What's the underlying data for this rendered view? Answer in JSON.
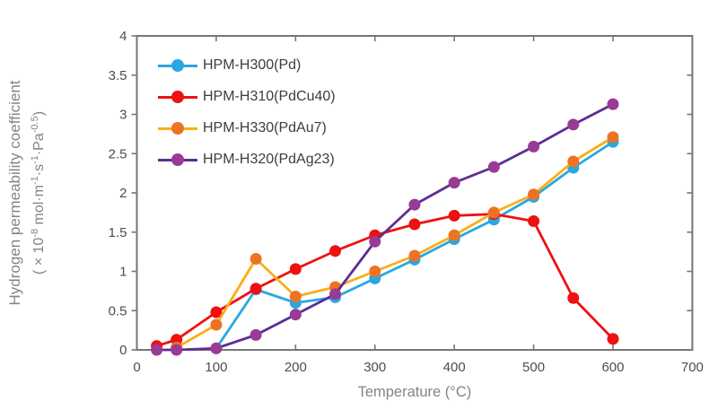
{
  "chart_data": {
    "type": "line",
    "title": "",
    "xlabel": "Temperature (°C)",
    "ylabel_line1": "Hydrogen permeability coefficient",
    "ylabel_line2_parts": [
      {
        "t": "( × 10"
      },
      {
        "t": "-8",
        "sup": true
      },
      {
        "t": " mol·m"
      },
      {
        "t": "-1",
        "sup": true
      },
      {
        "t": "·s"
      },
      {
        "t": "-1",
        "sup": true
      },
      {
        "t": "·Pa"
      },
      {
        "t": "-0.5",
        "sup": true
      },
      {
        "t": ")"
      }
    ],
    "xlim": [
      0,
      700
    ],
    "ylim": [
      0,
      4
    ],
    "x_ticks": [
      0,
      100,
      200,
      300,
      400,
      500,
      600,
      700
    ],
    "x_tick_labels": [
      "0",
      "100",
      "200",
      "300",
      "400",
      "500",
      "600",
      "700"
    ],
    "y_ticks": [
      0,
      0.5,
      1,
      1.5,
      2,
      2.5,
      3,
      3.5,
      4
    ],
    "y_tick_labels": [
      "0",
      "0.5",
      "1",
      "1.5",
      "2",
      "2.5",
      "3",
      "3.5",
      "4"
    ],
    "grid": false,
    "legend_position": "top-left-inside",
    "series": [
      {
        "name": "HPM-H300(Pd)",
        "line_color": "#29A8DF",
        "marker_color": "#29A8DF",
        "points": [
          [
            100,
            0.02
          ],
          [
            150,
            0.77
          ],
          [
            200,
            0.6
          ],
          [
            250,
            0.67
          ],
          [
            300,
            0.91
          ],
          [
            350,
            1.15
          ],
          [
            400,
            1.41
          ],
          [
            450,
            1.66
          ],
          [
            500,
            1.95
          ],
          [
            550,
            2.32
          ],
          [
            600,
            2.65
          ]
        ]
      },
      {
        "name": "HPM-H310(PdCu40)",
        "line_color": "#EE1111",
        "marker_color": "#EE1111",
        "points": [
          [
            25,
            0.05
          ],
          [
            50,
            0.13
          ],
          [
            100,
            0.48
          ],
          [
            150,
            0.78
          ],
          [
            200,
            1.03
          ],
          [
            250,
            1.26
          ],
          [
            300,
            1.46
          ],
          [
            350,
            1.6
          ],
          [
            400,
            1.71
          ],
          [
            450,
            1.73
          ],
          [
            500,
            1.64
          ],
          [
            550,
            0.66
          ],
          [
            600,
            0.14
          ]
        ]
      },
      {
        "name": "HPM-H330(PdAu7)",
        "line_color": "#FBAE17",
        "marker_color": "#ED7224",
        "points": [
          [
            50,
            0.03
          ],
          [
            100,
            0.32
          ],
          [
            150,
            1.16
          ],
          [
            200,
            0.68
          ],
          [
            250,
            0.8
          ],
          [
            300,
            1.0
          ],
          [
            350,
            1.2
          ],
          [
            400,
            1.46
          ],
          [
            450,
            1.75
          ],
          [
            500,
            1.98
          ],
          [
            550,
            2.4
          ],
          [
            600,
            2.71
          ]
        ]
      },
      {
        "name": "HPM-H320(PdAg23)",
        "line_color": "#5E2D91",
        "marker_color": "#993A96",
        "points": [
          [
            25,
            0.0
          ],
          [
            50,
            0.0
          ],
          [
            100,
            0.02
          ],
          [
            150,
            0.19
          ],
          [
            200,
            0.45
          ],
          [
            250,
            0.71
          ],
          [
            300,
            1.38
          ],
          [
            350,
            1.85
          ],
          [
            400,
            2.13
          ],
          [
            450,
            2.33
          ],
          [
            500,
            2.59
          ],
          [
            550,
            2.87
          ],
          [
            600,
            3.13
          ]
        ]
      }
    ],
    "styles": {
      "border_color": "#767676",
      "tick_color": "#767676",
      "tick_label_color": "#4d4d4d",
      "axis_title_color": "#848484",
      "legend_text_color": "#3d3d3d",
      "background": "#ffffff"
    }
  }
}
